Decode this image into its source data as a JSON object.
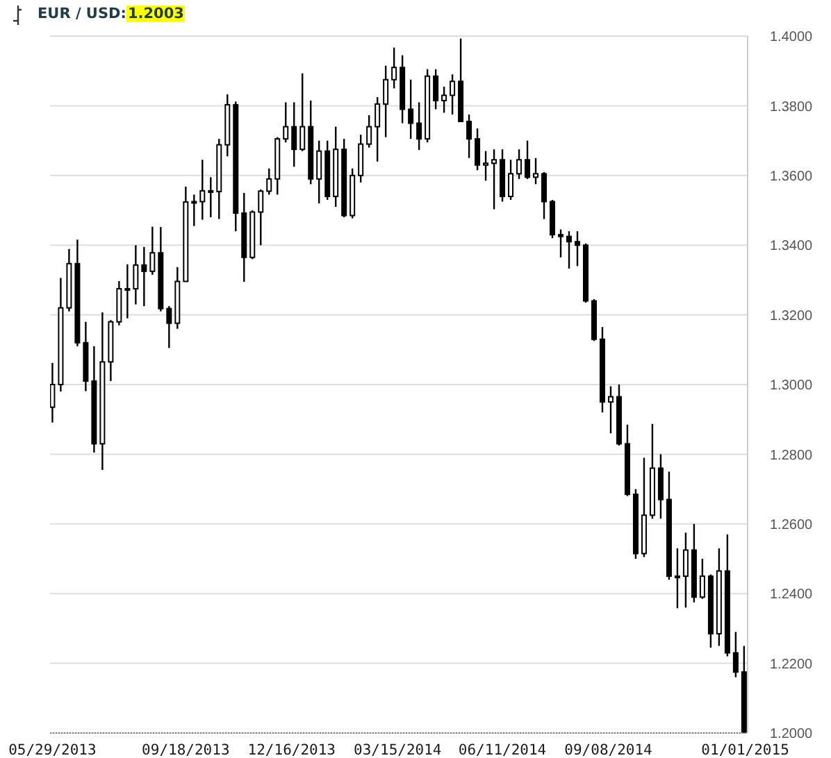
{
  "chart_data": {
    "type": "candlestick",
    "title": "EUR / USD:",
    "subtitle": "1.2003",
    "color": "#000000",
    "grid": "y",
    "x": [
      "2013-05-29",
      "2013-06-05",
      "2013-06-12",
      "2013-06-19",
      "2013-06-26",
      "2013-07-03",
      "2013-07-10",
      "2013-07-17",
      "2013-07-24",
      "2013-07-31",
      "2013-08-07",
      "2013-08-14",
      "2013-08-21",
      "2013-08-28",
      "2013-09-04",
      "2013-09-11",
      "2013-09-18",
      "2013-09-25",
      "2013-10-02",
      "2013-10-09",
      "2013-10-16",
      "2013-10-23",
      "2013-10-30",
      "2013-11-06",
      "2013-11-13",
      "2013-11-20",
      "2013-11-27",
      "2013-12-04",
      "2013-12-11",
      "2013-12-18",
      "2013-12-25",
      "2014-01-01",
      "2014-01-08",
      "2014-01-15",
      "2014-01-22",
      "2014-01-29",
      "2014-02-05",
      "2014-02-12",
      "2014-02-19",
      "2014-02-26",
      "2014-03-05",
      "2014-03-12",
      "2014-03-19",
      "2014-03-26",
      "2014-04-02",
      "2014-04-09",
      "2014-04-16",
      "2014-04-23",
      "2014-04-30",
      "2014-05-07",
      "2014-05-14",
      "2014-05-21",
      "2014-05-28",
      "2014-06-04",
      "2014-06-11",
      "2014-06-18",
      "2014-06-25",
      "2014-07-02",
      "2014-07-09",
      "2014-07-16",
      "2014-07-23",
      "2014-07-30",
      "2014-08-06",
      "2014-08-13",
      "2014-08-20",
      "2014-08-27",
      "2014-09-03",
      "2014-09-10",
      "2014-09-17",
      "2014-09-24",
      "2014-10-01",
      "2014-10-08",
      "2014-10-15",
      "2014-10-22",
      "2014-10-29",
      "2014-11-05",
      "2014-11-12",
      "2014-11-19",
      "2014-11-26",
      "2014-12-03",
      "2014-12-10",
      "2014-12-17",
      "2014-12-24",
      "2014-12-31"
    ],
    "ohlc": [
      [
        1.2935,
        1.3062,
        1.2891,
        1.3
      ],
      [
        1.3,
        1.3306,
        1.298,
        1.322
      ],
      [
        1.322,
        1.3389,
        1.321,
        1.3347
      ],
      [
        1.3347,
        1.3416,
        1.311,
        1.312
      ],
      [
        1.312,
        1.318,
        1.2981,
        1.301
      ],
      [
        1.301,
        1.311,
        1.2805,
        1.283
      ],
      [
        1.283,
        1.3207,
        1.2755,
        1.3065
      ],
      [
        1.3065,
        1.3185,
        1.301,
        1.318
      ],
      [
        1.318,
        1.3297,
        1.317,
        1.3275
      ],
      [
        1.3275,
        1.3345,
        1.319,
        1.3275
      ],
      [
        1.3275,
        1.34,
        1.323,
        1.3343
      ],
      [
        1.3343,
        1.3395,
        1.3225,
        1.3325
      ],
      [
        1.3325,
        1.3453,
        1.3315,
        1.3378
      ],
      [
        1.3378,
        1.3452,
        1.321,
        1.3218
      ],
      [
        1.3218,
        1.3225,
        1.3105,
        1.3176
      ],
      [
        1.3176,
        1.3337,
        1.316,
        1.3296
      ],
      [
        1.3296,
        1.3568,
        1.3295,
        1.3524
      ],
      [
        1.3524,
        1.3545,
        1.3455,
        1.3525
      ],
      [
        1.3525,
        1.3645,
        1.3473,
        1.3556
      ],
      [
        1.3556,
        1.3595,
        1.348,
        1.3554
      ],
      [
        1.3554,
        1.3705,
        1.3475,
        1.3688
      ],
      [
        1.3688,
        1.3833,
        1.3655,
        1.3803
      ],
      [
        1.3803,
        1.3812,
        1.344,
        1.3492
      ],
      [
        1.3492,
        1.355,
        1.3295,
        1.3365
      ],
      [
        1.3365,
        1.35,
        1.336,
        1.3495
      ],
      [
        1.3495,
        1.356,
        1.34,
        1.3555
      ],
      [
        1.3555,
        1.362,
        1.3545,
        1.359
      ],
      [
        1.359,
        1.371,
        1.3545,
        1.3705
      ],
      [
        1.3705,
        1.381,
        1.3695,
        1.374
      ],
      [
        1.374,
        1.381,
        1.3625,
        1.3675
      ],
      [
        1.3675,
        1.3893,
        1.367,
        1.374
      ],
      [
        1.374,
        1.3815,
        1.3575,
        1.359
      ],
      [
        1.359,
        1.37,
        1.352,
        1.367
      ],
      [
        1.367,
        1.37,
        1.353,
        1.354
      ],
      [
        1.354,
        1.374,
        1.351,
        1.3675
      ],
      [
        1.3675,
        1.3705,
        1.348,
        1.3485
      ],
      [
        1.3485,
        1.362,
        1.3477,
        1.36
      ],
      [
        1.36,
        1.3717,
        1.358,
        1.369
      ],
      [
        1.369,
        1.3773,
        1.368,
        1.374
      ],
      [
        1.374,
        1.3825,
        1.364,
        1.3805
      ],
      [
        1.3805,
        1.3915,
        1.371,
        1.3875
      ],
      [
        1.3875,
        1.3967,
        1.385,
        1.391
      ],
      [
        1.391,
        1.3945,
        1.375,
        1.379
      ],
      [
        1.379,
        1.3875,
        1.3705,
        1.375
      ],
      [
        1.375,
        1.381,
        1.3673,
        1.3705
      ],
      [
        1.3705,
        1.3905,
        1.3695,
        1.3885
      ],
      [
        1.3885,
        1.3905,
        1.379,
        1.3815
      ],
      [
        1.3815,
        1.3855,
        1.378,
        1.383
      ],
      [
        1.383,
        1.389,
        1.3775,
        1.387
      ],
      [
        1.387,
        1.3993,
        1.3755,
        1.3755
      ],
      [
        1.3755,
        1.3775,
        1.365,
        1.3705
      ],
      [
        1.3705,
        1.3735,
        1.3615,
        1.363
      ],
      [
        1.363,
        1.367,
        1.3585,
        1.3635
      ],
      [
        1.3635,
        1.3675,
        1.3503,
        1.3645
      ],
      [
        1.3645,
        1.3675,
        1.3525,
        1.354
      ],
      [
        1.354,
        1.3645,
        1.353,
        1.3605
      ],
      [
        1.3605,
        1.3675,
        1.359,
        1.3645
      ],
      [
        1.3645,
        1.37,
        1.359,
        1.3595
      ],
      [
        1.3595,
        1.365,
        1.3575,
        1.3605
      ],
      [
        1.3605,
        1.361,
        1.3475,
        1.3525
      ],
      [
        1.3525,
        1.353,
        1.342,
        1.343
      ],
      [
        1.343,
        1.3445,
        1.3365,
        1.3425
      ],
      [
        1.3425,
        1.344,
        1.3333,
        1.341
      ],
      [
        1.341,
        1.344,
        1.334,
        1.34
      ],
      [
        1.34,
        1.3405,
        1.3235,
        1.324
      ],
      [
        1.324,
        1.3245,
        1.3125,
        1.313
      ],
      [
        1.313,
        1.3165,
        1.292,
        1.295
      ],
      [
        1.295,
        1.2995,
        1.286,
        1.2965
      ],
      [
        1.2965,
        1.3,
        1.2825,
        1.283
      ],
      [
        1.283,
        1.2885,
        1.268,
        1.2685
      ],
      [
        1.2685,
        1.27,
        1.25,
        1.2515
      ],
      [
        1.2515,
        1.279,
        1.2505,
        1.2625
      ],
      [
        1.2625,
        1.2887,
        1.2615,
        1.276
      ],
      [
        1.276,
        1.28,
        1.2615,
        1.267
      ],
      [
        1.267,
        1.275,
        1.244,
        1.245
      ],
      [
        1.245,
        1.253,
        1.2358,
        1.245
      ],
      [
        1.245,
        1.2575,
        1.236,
        1.2525
      ],
      [
        1.2525,
        1.26,
        1.2375,
        1.239
      ],
      [
        1.239,
        1.25,
        1.2385,
        1.245
      ],
      [
        1.245,
        1.2455,
        1.2245,
        1.2285
      ],
      [
        1.2285,
        1.253,
        1.225,
        1.2465
      ],
      [
        1.2465,
        1.257,
        1.222,
        1.223
      ],
      [
        1.223,
        1.229,
        1.216,
        1.2175
      ],
      [
        1.2175,
        1.225,
        1.2,
        1.2003
      ]
    ],
    "xlim": [
      "2013-05-27",
      "2015-01-03"
    ],
    "xticks": [
      {
        "value": "2013-05-29",
        "label": "05/29/2013"
      },
      {
        "value": "2013-09-18",
        "label": "09/18/2013"
      },
      {
        "value": "2013-12-16",
        "label": "12/16/2013"
      },
      {
        "value": "2014-03-15",
        "label": "03/15/2014"
      },
      {
        "value": "2014-06-11",
        "label": "06/11/2014"
      },
      {
        "value": "2014-09-08",
        "label": "09/08/2014"
      },
      {
        "value": "2015-01-01",
        "label": "01/01/2015"
      }
    ],
    "ylim": [
      1.2,
      1.4
    ],
    "yticks": [
      {
        "value": 1.2,
        "label": "1.2000"
      },
      {
        "value": 1.22,
        "label": "1.2200"
      },
      {
        "value": 1.24,
        "label": "1.2400"
      },
      {
        "value": 1.26,
        "label": "1.2600"
      },
      {
        "value": 1.28,
        "label": "1.2800"
      },
      {
        "value": 1.3,
        "label": "1.3000"
      },
      {
        "value": 1.32,
        "label": "1.3200"
      },
      {
        "value": 1.34,
        "label": "1.3400"
      },
      {
        "value": 1.36,
        "label": "1.3600"
      },
      {
        "value": 1.38,
        "label": "1.3800"
      },
      {
        "value": 1.4,
        "label": "1.4000"
      }
    ]
  }
}
